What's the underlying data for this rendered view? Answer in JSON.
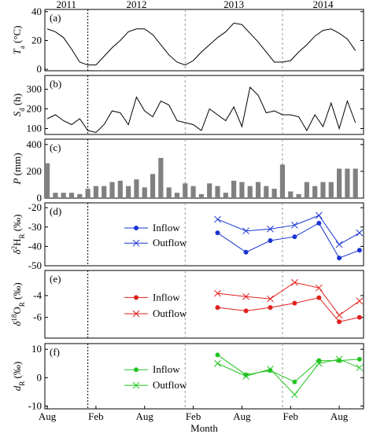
{
  "chart_data": [
    {
      "type": "line",
      "label": "(a)",
      "ylabel": [
        {
          "text": "T",
          "style": "italic"
        },
        {
          "text": "a",
          "style": "sub"
        },
        {
          "text": " (°C)",
          "style": "normal"
        }
      ],
      "years": [
        "2011",
        "2012",
        "2013",
        "2014"
      ],
      "year_lines": [
        5,
        17,
        29
      ],
      "xlim": [
        -0.3,
        39
      ],
      "ylim": [
        -1,
        41.5
      ],
      "yticks": [
        0,
        20,
        40
      ],
      "x": [
        0,
        1,
        2,
        3,
        4,
        5,
        6,
        7,
        8,
        9,
        10,
        11,
        12,
        13,
        14,
        15,
        16,
        17,
        18,
        19,
        20,
        21,
        22,
        23,
        24,
        25,
        26,
        27,
        28,
        29,
        30,
        31,
        32,
        33,
        34,
        35,
        36,
        37,
        38
      ],
      "series": [
        {
          "color": "#000000",
          "values": [
            28,
            26,
            22,
            14,
            5,
            3,
            3,
            9,
            15,
            20,
            26,
            28,
            28,
            24,
            17,
            10,
            5,
            3,
            6,
            12,
            17,
            22,
            26,
            32,
            31,
            25,
            19,
            12,
            5,
            5,
            6,
            12,
            17,
            23,
            27,
            28,
            25,
            21,
            13
          ]
        }
      ]
    },
    {
      "type": "line",
      "label": "(b)",
      "ylabel": [
        {
          "text": "S",
          "style": "italic"
        },
        {
          "text": "d",
          "style": "sub"
        },
        {
          "text": " (h)",
          "style": "normal"
        }
      ],
      "xlim": [
        -0.3,
        39
      ],
      "ylim": [
        70,
        370
      ],
      "yticks": [
        100,
        200,
        300
      ],
      "x": [
        0,
        1,
        2,
        3,
        4,
        5,
        6,
        7,
        8,
        9,
        10,
        11,
        12,
        13,
        14,
        15,
        16,
        17,
        18,
        19,
        20,
        21,
        22,
        23,
        24,
        25,
        26,
        27,
        28,
        29,
        30,
        31,
        32,
        33,
        34,
        35,
        36,
        37,
        38
      ],
      "series": [
        {
          "color": "#000000",
          "values": [
            150,
            170,
            140,
            120,
            150,
            90,
            80,
            120,
            190,
            180,
            120,
            260,
            190,
            160,
            240,
            220,
            140,
            130,
            120,
            90,
            200,
            170,
            140,
            210,
            110,
            310,
            270,
            180,
            190,
            170,
            170,
            160,
            90,
            170,
            110,
            230,
            100,
            240,
            130
          ]
        }
      ]
    },
    {
      "type": "bar",
      "label": "(c)",
      "ylabel": [
        {
          "text": "P",
          "style": "italic"
        },
        {
          "text": " (mm)",
          "style": "normal"
        }
      ],
      "xlim": [
        -0.3,
        39
      ],
      "ylim": [
        0,
        440
      ],
      "yticks": [
        0,
        200,
        400
      ],
      "color": "#808080",
      "x": [
        0,
        1,
        2,
        3,
        4,
        5,
        6,
        7,
        8,
        9,
        10,
        11,
        12,
        13,
        14,
        15,
        16,
        17,
        18,
        19,
        20,
        21,
        22,
        23,
        24,
        25,
        26,
        27,
        28,
        29,
        30,
        31,
        32,
        33,
        34,
        35,
        36,
        37,
        38
      ],
      "values": [
        260,
        40,
        40,
        40,
        30,
        70,
        90,
        90,
        120,
        130,
        90,
        140,
        80,
        180,
        300,
        80,
        40,
        110,
        90,
        30,
        110,
        90,
        40,
        130,
        120,
        90,
        120,
        90,
        70,
        250,
        50,
        30,
        120,
        90,
        120,
        120,
        220,
        220,
        220
      ]
    },
    {
      "type": "line",
      "label": "(d)",
      "ylabel": [
        {
          "text": "δ",
          "style": "italic"
        },
        {
          "text": "2",
          "style": "sup"
        },
        {
          "text": "H",
          "style": "normal"
        },
        {
          "text": "R",
          "style": "sub"
        },
        {
          "text": " (‰)",
          "style": "normal"
        }
      ],
      "xlim": [
        -0.3,
        39
      ],
      "ylim": [
        -50,
        -17.5
      ],
      "yticks": [
        -50,
        -40,
        -30,
        -20
      ],
      "legend": "left",
      "x": [
        21,
        24.5,
        27.5,
        30.5,
        33.5,
        36,
        38.5
      ],
      "series": [
        {
          "name": "Inflow",
          "color": "#1a35d4",
          "marker": "o",
          "values": [
            -33,
            -43,
            -37,
            -35,
            -28,
            -46,
            -42
          ]
        },
        {
          "name": "Outflow",
          "color": "#1a35d4",
          "marker": "x",
          "values": [
            -26,
            -32,
            -31,
            -29,
            -24,
            -39,
            -33
          ]
        }
      ]
    },
    {
      "type": "line",
      "label": "(e)",
      "ylabel": [
        {
          "text": "δ",
          "style": "italic"
        },
        {
          "text": "18",
          "style": "sup"
        },
        {
          "text": "O",
          "style": "normal"
        },
        {
          "text": "R",
          "style": "sub"
        },
        {
          "text": " (‰)",
          "style": "normal"
        }
      ],
      "xlim": [
        -0.3,
        39
      ],
      "ylim": [
        -7.9,
        -1.7
      ],
      "yticks": [
        -6,
        -4
      ],
      "legend": "left",
      "x": [
        21,
        24.5,
        27.5,
        30.5,
        33.5,
        36,
        38.5
      ],
      "series": [
        {
          "name": "Inflow",
          "color": "#e0201c",
          "marker": "o",
          "values": [
            -5.1,
            -5.4,
            -5.1,
            -4.7,
            -4.2,
            -6.4,
            -6.0
          ]
        },
        {
          "name": "Outflow",
          "color": "#e0201c",
          "marker": "x",
          "values": [
            -3.8,
            -4.1,
            -4.3,
            -2.8,
            -3.3,
            -5.8,
            -4.5
          ]
        }
      ]
    },
    {
      "type": "line",
      "label": "(f)",
      "ylabel": [
        {
          "text": "d",
          "style": "italic"
        },
        {
          "text": "R",
          "style": "sub"
        },
        {
          "text": " (‰)",
          "style": "normal"
        }
      ],
      "xlim": [
        -0.3,
        39
      ],
      "ylim": [
        -11,
        12
      ],
      "yticks": [
        -10,
        0,
        10
      ],
      "legend": "left",
      "xticks": [
        {
          "value": 0,
          "label": "Aug"
        },
        {
          "value": 6,
          "label": "Feb"
        },
        {
          "value": 12,
          "label": "Aug"
        },
        {
          "value": 18,
          "label": "Feb"
        },
        {
          "value": 24,
          "label": "Aug"
        },
        {
          "value": 30,
          "label": "Feb"
        },
        {
          "value": 36,
          "label": "Aug"
        }
      ],
      "xlabel": "Month",
      "x": [
        21,
        24.5,
        27.5,
        30.5,
        33.5,
        36,
        38.5
      ],
      "series": [
        {
          "name": "Inflow",
          "color": "#22c422",
          "marker": "o",
          "values": [
            8,
            1,
            2.5,
            -1.5,
            6,
            6,
            6.5
          ]
        },
        {
          "name": "Outflow",
          "color": "#22c422",
          "marker": "x",
          "values": [
            5,
            0.5,
            3,
            -6,
            5,
            6.5,
            3.5
          ]
        }
      ]
    }
  ]
}
